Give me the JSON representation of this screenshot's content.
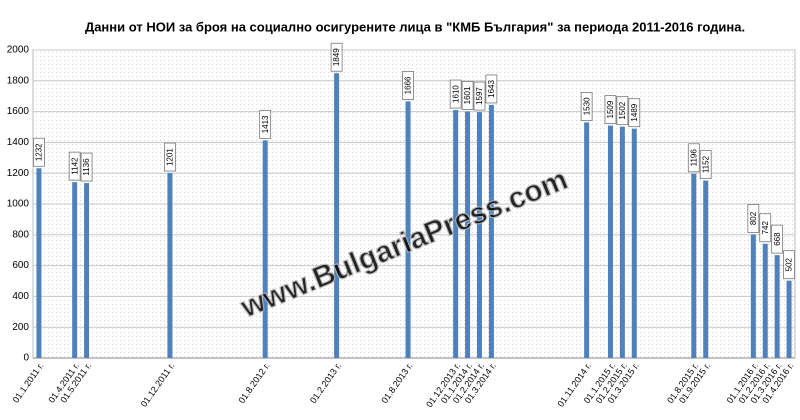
{
  "chart_data": {
    "type": "bar",
    "title": "Данни от НОИ за броя на социално осигурените лица  в \"КМБ България\" за периода 2011-2016 година.",
    "watermark": "www.BulgariaPress.com",
    "categories": [
      "01.1.2011 г.",
      null,
      null,
      "01.4.2011 г.",
      "01.5.2011 г.",
      null,
      null,
      null,
      null,
      null,
      null,
      "01.12.2011 г.",
      null,
      null,
      null,
      null,
      null,
      null,
      null,
      "01.8.2012 г.",
      null,
      null,
      null,
      null,
      null,
      "01.2.2013 г.",
      null,
      null,
      null,
      null,
      null,
      "01.8.2013 г.",
      null,
      null,
      null,
      "01.12.2013 г.",
      "01.1.2014 г.",
      "01.2.2014 г.",
      "01.3.2014 г.",
      null,
      null,
      null,
      null,
      null,
      null,
      null,
      "01.11.2014 г.",
      null,
      "01.1.2015 г.",
      "01.2.2015 г.",
      "01.3.2015 г.",
      null,
      null,
      null,
      null,
      "01.8.2015 г.",
      "01.9.2015 г.",
      null,
      null,
      null,
      "01.1.2016 г.",
      "01.2.2016 г.",
      "01.3.2016 г.",
      "01.4.2016 г."
    ],
    "values": [
      1232,
      null,
      null,
      1142,
      1136,
      null,
      null,
      null,
      null,
      null,
      null,
      1201,
      null,
      null,
      null,
      null,
      null,
      null,
      null,
      1413,
      null,
      null,
      null,
      null,
      null,
      1849,
      null,
      null,
      null,
      null,
      null,
      1666,
      null,
      null,
      null,
      1610,
      1601,
      1597,
      1643,
      null,
      null,
      null,
      null,
      null,
      null,
      null,
      1530,
      null,
      1509,
      1502,
      1489,
      null,
      null,
      null,
      null,
      1196,
      1152,
      null,
      null,
      null,
      802,
      742,
      668,
      502
    ],
    "color": "#4f81bd",
    "ylim": [
      0,
      2000
    ],
    "yticks": [
      0,
      200,
      400,
      600,
      800,
      1000,
      1200,
      1400,
      1600,
      1800,
      2000
    ],
    "grid": true
  }
}
